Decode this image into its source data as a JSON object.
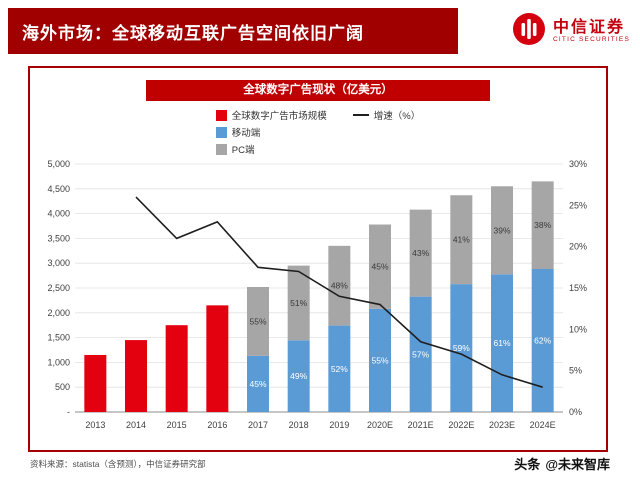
{
  "page": {
    "header_title": "海外市场：全球移动互联广告空间依旧广阔",
    "logo": {
      "cn": "中信证券",
      "en": "CITIC SECURITIES"
    },
    "source_note": "资料来源：statista（含预测），中信证券研究部",
    "watermark": {
      "prefix": "头条",
      "handle": "@未来智库"
    },
    "colors": {
      "header_red": "#a00000",
      "title_bar_red": "#c00000",
      "bar_red": "#e3000f",
      "bar_blue": "#5b9bd5",
      "bar_gray": "#a6a6a6",
      "line_black": "#1f1f1f"
    }
  },
  "chart_data": {
    "type": "bar",
    "title": "全球数字广告现状（亿美元）",
    "categories": [
      "2013",
      "2014",
      "2015",
      "2016",
      "2017",
      "2018",
      "2019",
      "2020E",
      "2021E",
      "2022E",
      "2023E",
      "2024E"
    ],
    "left_axis": {
      "min": 0,
      "max": 5000,
      "step": 500,
      "ticks": [
        "5,000",
        "4,500",
        "4,000",
        "3,500",
        "3,000",
        "2,500",
        "2,000",
        "1,500",
        "1,000",
        "500",
        "-"
      ]
    },
    "right_axis": {
      "min": 0,
      "max": 30,
      "step": 5,
      "ticks": [
        "30%",
        "25%",
        "20%",
        "15%",
        "10%",
        "5%",
        "0%"
      ]
    },
    "series": [
      {
        "name": "全球数字广告市场规模",
        "type": "bar",
        "stack": false,
        "color": "#e3000f",
        "values": [
          1150,
          1450,
          1750,
          2150,
          null,
          null,
          null,
          null,
          null,
          null,
          null,
          null
        ],
        "labels": null,
        "label_color": null
      },
      {
        "name": "移动端",
        "type": "bar",
        "stack": true,
        "color": "#5b9bd5",
        "values": [
          null,
          null,
          null,
          null,
          1134,
          1446,
          1742,
          2079,
          2326,
          2578,
          2776,
          2883
        ],
        "labels": [
          null,
          null,
          null,
          null,
          "45%",
          "49%",
          "52%",
          "55%",
          "57%",
          "59%",
          "61%",
          "62%"
        ],
        "label_color": "#ffffff"
      },
      {
        "name": "PC端",
        "type": "bar",
        "stack": true,
        "color": "#a6a6a6",
        "values": [
          null,
          null,
          null,
          null,
          1386,
          1505,
          1608,
          1701,
          1754,
          1792,
          1775,
          1767
        ],
        "labels": [
          null,
          null,
          null,
          null,
          "55%",
          "51%",
          "48%",
          "45%",
          "43%",
          "41%",
          "39%",
          "38%"
        ],
        "label_color": "#3a3a3a"
      },
      {
        "name": "增速（%）",
        "type": "line",
        "axis": "right",
        "color": "#1f1f1f",
        "values": [
          null,
          26,
          21,
          23,
          17.5,
          17,
          14,
          13,
          8.5,
          7,
          4.5,
          3
        ]
      }
    ],
    "legend": [
      {
        "label": "全球数字广告市场规模",
        "swatch": "square",
        "color": "#e3000f"
      },
      {
        "label": "移动端",
        "swatch": "square",
        "color": "#5b9bd5"
      },
      {
        "label": "PC端",
        "swatch": "square",
        "color": "#a6a6a6"
      },
      {
        "label": "增速（%）",
        "swatch": "line",
        "color": "#1f1f1f"
      }
    ],
    "legend_position": "top",
    "grid": true
  }
}
